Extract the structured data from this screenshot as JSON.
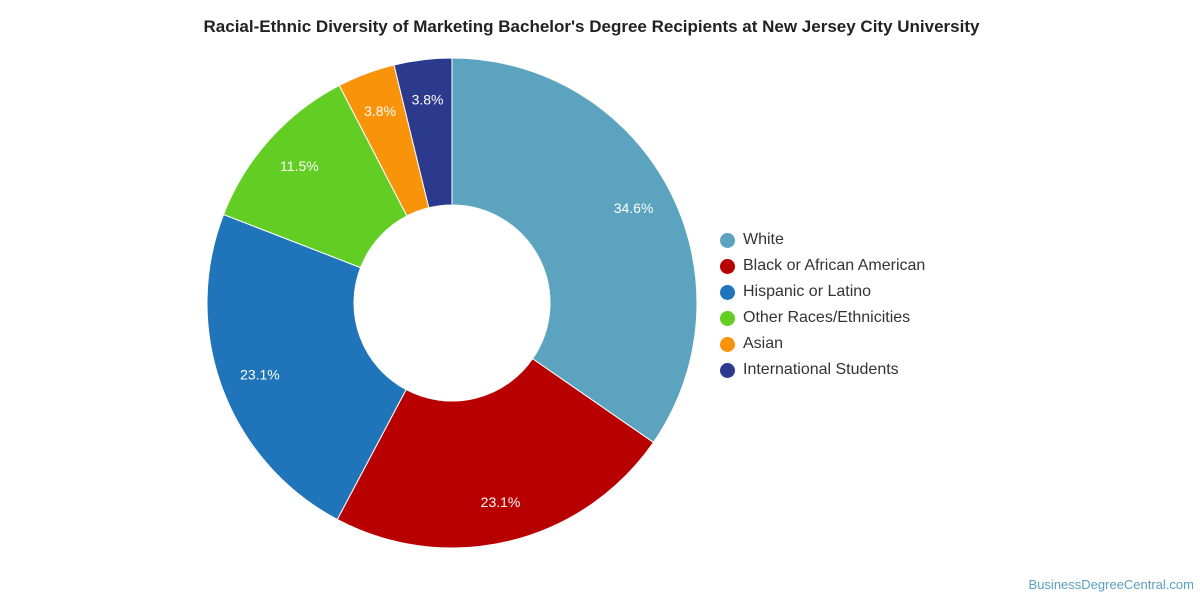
{
  "chart_data": {
    "type": "pie",
    "title": "Racial-Ethnic Diversity of Marketing Bachelor's Degree Recipients at New Jersey City University",
    "categories": [
      "White",
      "Black or African American",
      "Hispanic or Latino",
      "Other Races/Ethnicities",
      "Asian",
      "International Students"
    ],
    "values": [
      34.6,
      23.1,
      23.1,
      11.5,
      3.8,
      3.8
    ],
    "labels": [
      "34.6%",
      "23.1%",
      "23.1%",
      "11.5%",
      "3.8%",
      "3.8%"
    ],
    "colors": [
      "#5ba3bf",
      "#b90000",
      "#2075ba",
      "#62ce23",
      "#f9930a",
      "#2c3a8e"
    ],
    "legend_position": "right"
  },
  "footer": {
    "source": "BusinessDegreeCentral.com"
  }
}
